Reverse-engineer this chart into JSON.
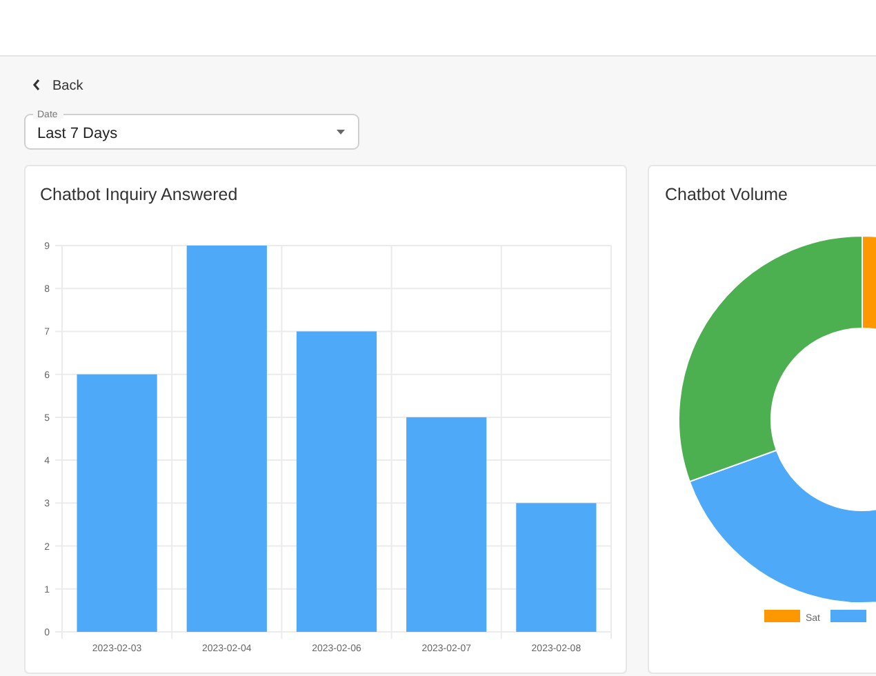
{
  "chart_data": [
    {
      "type": "bar",
      "title": "Chatbot Inquiry Answered",
      "categories": [
        "2023-02-03",
        "2023-02-04",
        "2023-02-06",
        "2023-02-07",
        "2023-02-08"
      ],
      "values": [
        6,
        9,
        7,
        5,
        3
      ],
      "color": "#4eaaf8",
      "ylim": [
        0,
        9
      ],
      "yticks": [
        0,
        1,
        2,
        3,
        4,
        5,
        6,
        7,
        8,
        9
      ],
      "grid": true,
      "annotations": [
        "Back",
        "Date",
        "Last 7 Days"
      ]
    },
    {
      "type": "donut",
      "title": "Chatbot Volume",
      "categories": [
        "Sat",
        null,
        null
      ],
      "values": [
        10,
        59.5,
        30.5
      ],
      "colors": [
        "#ff9800",
        "#4eaaf8",
        "#4caf50"
      ],
      "legend": "bottom"
    }
  ]
}
